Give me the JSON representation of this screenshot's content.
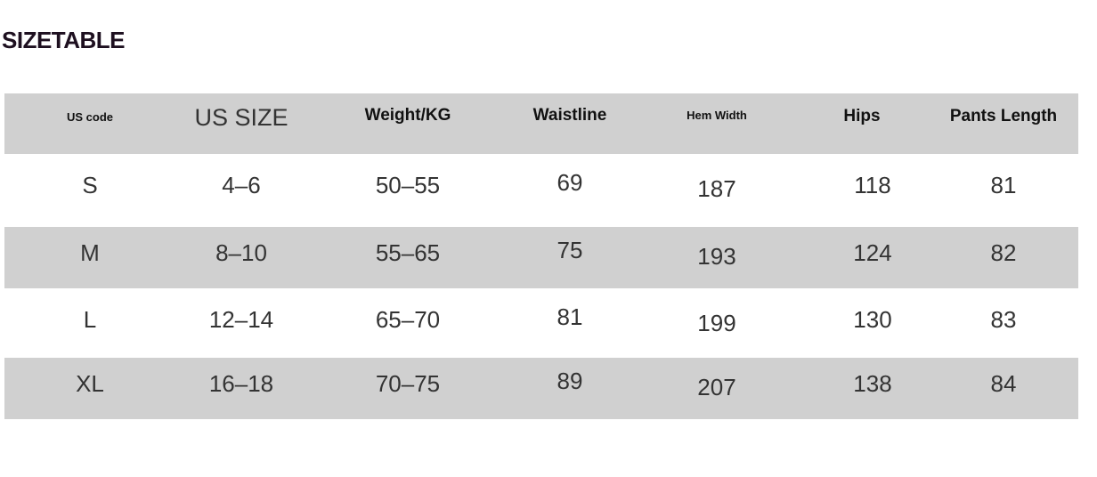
{
  "title": "SIZETABLE",
  "headers": [
    "US code",
    "US SIZE",
    "Weight/KG",
    "Waistline",
    "Hem Width",
    "Hips",
    "Pants Length"
  ],
  "rows": [
    [
      "S",
      "4–6",
      "50–55",
      "69",
      "187",
      "118",
      "81"
    ],
    [
      "M",
      "8–10",
      "55–65",
      "75",
      "193",
      "124",
      "82"
    ],
    [
      "L",
      "12–14",
      "65–70",
      "81",
      "199",
      "130",
      "83"
    ],
    [
      "XL",
      "16–18",
      "70–75",
      "89",
      "207",
      "138",
      "84"
    ]
  ],
  "colors": {
    "band": "#d0d0d0",
    "title": "#1e1020"
  }
}
